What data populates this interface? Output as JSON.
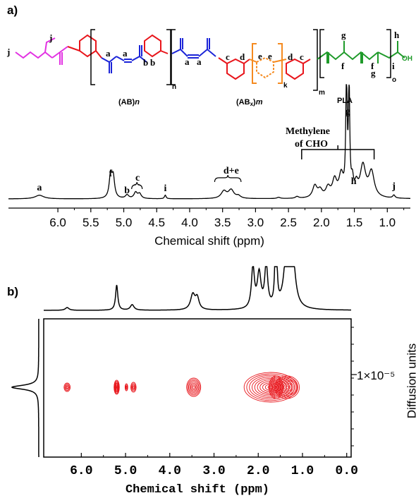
{
  "figure": {
    "panel_a_label": "a)",
    "panel_b_label": "b)"
  },
  "structure": {
    "ab_label": "(AB)",
    "ab_sub": "n",
    "abx_label": "(AB",
    "abx_x": "x",
    "abx_sub": "m",
    "pla_label": "PLA",
    "repeat_n": "n",
    "repeat_k": "k",
    "repeat_m": "m",
    "repeat_o": "o",
    "oh": "OH",
    "letters": {
      "j1": "j",
      "j2": "j",
      "a1": "a",
      "a2": "a",
      "b1": "b",
      "b2": "b",
      "a3": "a",
      "a4": "a",
      "c1": "c",
      "d1": "d",
      "e1": "e",
      "e2": "e",
      "d2": "d",
      "c2": "c",
      "g1": "g",
      "f1": "f",
      "f2": "f",
      "g2": "g",
      "h": "h",
      "i": "i"
    }
  },
  "chart_data": [
    {
      "type": "line",
      "title": "",
      "xlabel": "Chemical shift (ppm)",
      "ylabel": "",
      "xlim": [
        6.75,
        0.65
      ],
      "x_reversed": true,
      "xticks": [
        "6.0",
        "5.5",
        "5.0",
        "4.5",
        "4.0",
        "3.5",
        "3.0",
        "2.5",
        "2.0",
        "1.5",
        "1.0"
      ],
      "peaks": [
        {
          "shift": 6.28,
          "height": 0.03,
          "width": 0.08
        },
        {
          "shift": 5.2,
          "height": 0.19,
          "width": 0.025
        },
        {
          "shift": 5.16,
          "height": 0.17,
          "width": 0.025
        },
        {
          "shift": 4.95,
          "height": 0.03,
          "width": 0.03
        },
        {
          "shift": 4.82,
          "height": 0.05,
          "width": 0.03
        },
        {
          "shift": 4.76,
          "height": 0.04,
          "width": 0.03
        },
        {
          "shift": 4.37,
          "height": 0.03,
          "width": 0.015
        },
        {
          "shift": 3.48,
          "height": 0.06,
          "width": 0.05
        },
        {
          "shift": 3.37,
          "height": 0.07,
          "width": 0.05
        },
        {
          "shift": 3.26,
          "height": 0.02,
          "width": 0.04
        },
        {
          "shift": 2.65,
          "height": 0.01,
          "width": 0.03
        },
        {
          "shift": 2.37,
          "height": 0.015,
          "width": 0.03
        },
        {
          "shift": 2.1,
          "height": 0.1,
          "width": 0.04
        },
        {
          "shift": 2.02,
          "height": 0.06,
          "width": 0.04
        },
        {
          "shift": 1.9,
          "height": 0.08,
          "width": 0.04
        },
        {
          "shift": 1.8,
          "height": 0.14,
          "width": 0.04
        },
        {
          "shift": 1.7,
          "height": 0.18,
          "width": 0.04
        },
        {
          "shift": 1.62,
          "height": 1.0,
          "width": 0.012
        },
        {
          "shift": 1.58,
          "height": 0.9,
          "width": 0.012
        },
        {
          "shift": 1.53,
          "height": 0.12,
          "width": 0.02
        },
        {
          "shift": 1.47,
          "height": 0.09,
          "width": 0.03
        },
        {
          "shift": 1.37,
          "height": 0.26,
          "width": 0.05
        },
        {
          "shift": 1.24,
          "height": 0.21,
          "width": 0.05
        },
        {
          "shift": 0.9,
          "height": 0.025,
          "width": 0.02
        }
      ],
      "annotations": [
        {
          "text": "a",
          "shift": 6.28
        },
        {
          "text": "f",
          "shift": 5.2
        },
        {
          "text": "b",
          "shift": 4.95
        },
        {
          "text": "c",
          "shift": 4.79
        },
        {
          "text": "i",
          "shift": 4.37
        },
        {
          "text": "d+e",
          "shift": 3.37
        },
        {
          "text": "g",
          "shift": 1.6
        },
        {
          "text": "h",
          "shift": 1.51
        },
        {
          "text": "j",
          "shift": 0.9
        }
      ],
      "methylene_label": [
        "Methylene",
        "of CHO"
      ],
      "methylene_range": [
        2.3,
        1.2
      ]
    },
    {
      "type": "contour",
      "title": "",
      "xlabel": "Chemical shift (ppm)",
      "ylabel": "Diffusion units",
      "xlim": [
        6.85,
        -0.1
      ],
      "x_reversed": true,
      "xticks": [
        "6.0",
        "5.0",
        "4.0",
        "3.0",
        "2.0",
        "1.0",
        "0.0"
      ],
      "yticks": [
        "1×10⁻⁵"
      ],
      "color": "#e8151b",
      "spots": [
        {
          "shift": 6.32,
          "rx": 0.07,
          "ry": 6,
          "rings": 4
        },
        {
          "shift": 5.2,
          "rx": 0.06,
          "ry": 10,
          "rings": 7
        },
        {
          "shift": 4.98,
          "rx": 0.03,
          "ry": 5,
          "rings": 3
        },
        {
          "shift": 4.82,
          "rx": 0.06,
          "ry": 7,
          "rings": 4
        },
        {
          "shift": 3.46,
          "rx": 0.16,
          "ry": 13,
          "rings": 7
        },
        {
          "shift": 1.72,
          "rx": 0.6,
          "ry": 21,
          "rings": 10
        },
        {
          "shift": 1.6,
          "rx": 0.16,
          "ry": 16,
          "rings": 8
        },
        {
          "shift": 1.35,
          "rx": 0.28,
          "ry": 16,
          "rings": 8
        }
      ],
      "top_projection_peaks": [
        {
          "shift": 6.32,
          "height": 0.06,
          "width": 0.05
        },
        {
          "shift": 5.2,
          "height": 0.55,
          "width": 0.03
        },
        {
          "shift": 4.85,
          "height": 0.12,
          "width": 0.05
        },
        {
          "shift": 3.48,
          "height": 0.33,
          "width": 0.06
        },
        {
          "shift": 3.38,
          "height": 0.25,
          "width": 0.05
        },
        {
          "shift": 2.12,
          "height": 0.9,
          "width": 0.04
        },
        {
          "shift": 1.98,
          "height": 0.75,
          "width": 0.05
        },
        {
          "shift": 1.82,
          "height": 0.95,
          "width": 0.04
        },
        {
          "shift": 1.6,
          "height": 2.5,
          "width": 0.02
        },
        {
          "shift": 1.35,
          "height": 1.4,
          "width": 0.07
        },
        {
          "shift": 1.22,
          "height": 1.0,
          "width": 0.07
        }
      ]
    }
  ]
}
